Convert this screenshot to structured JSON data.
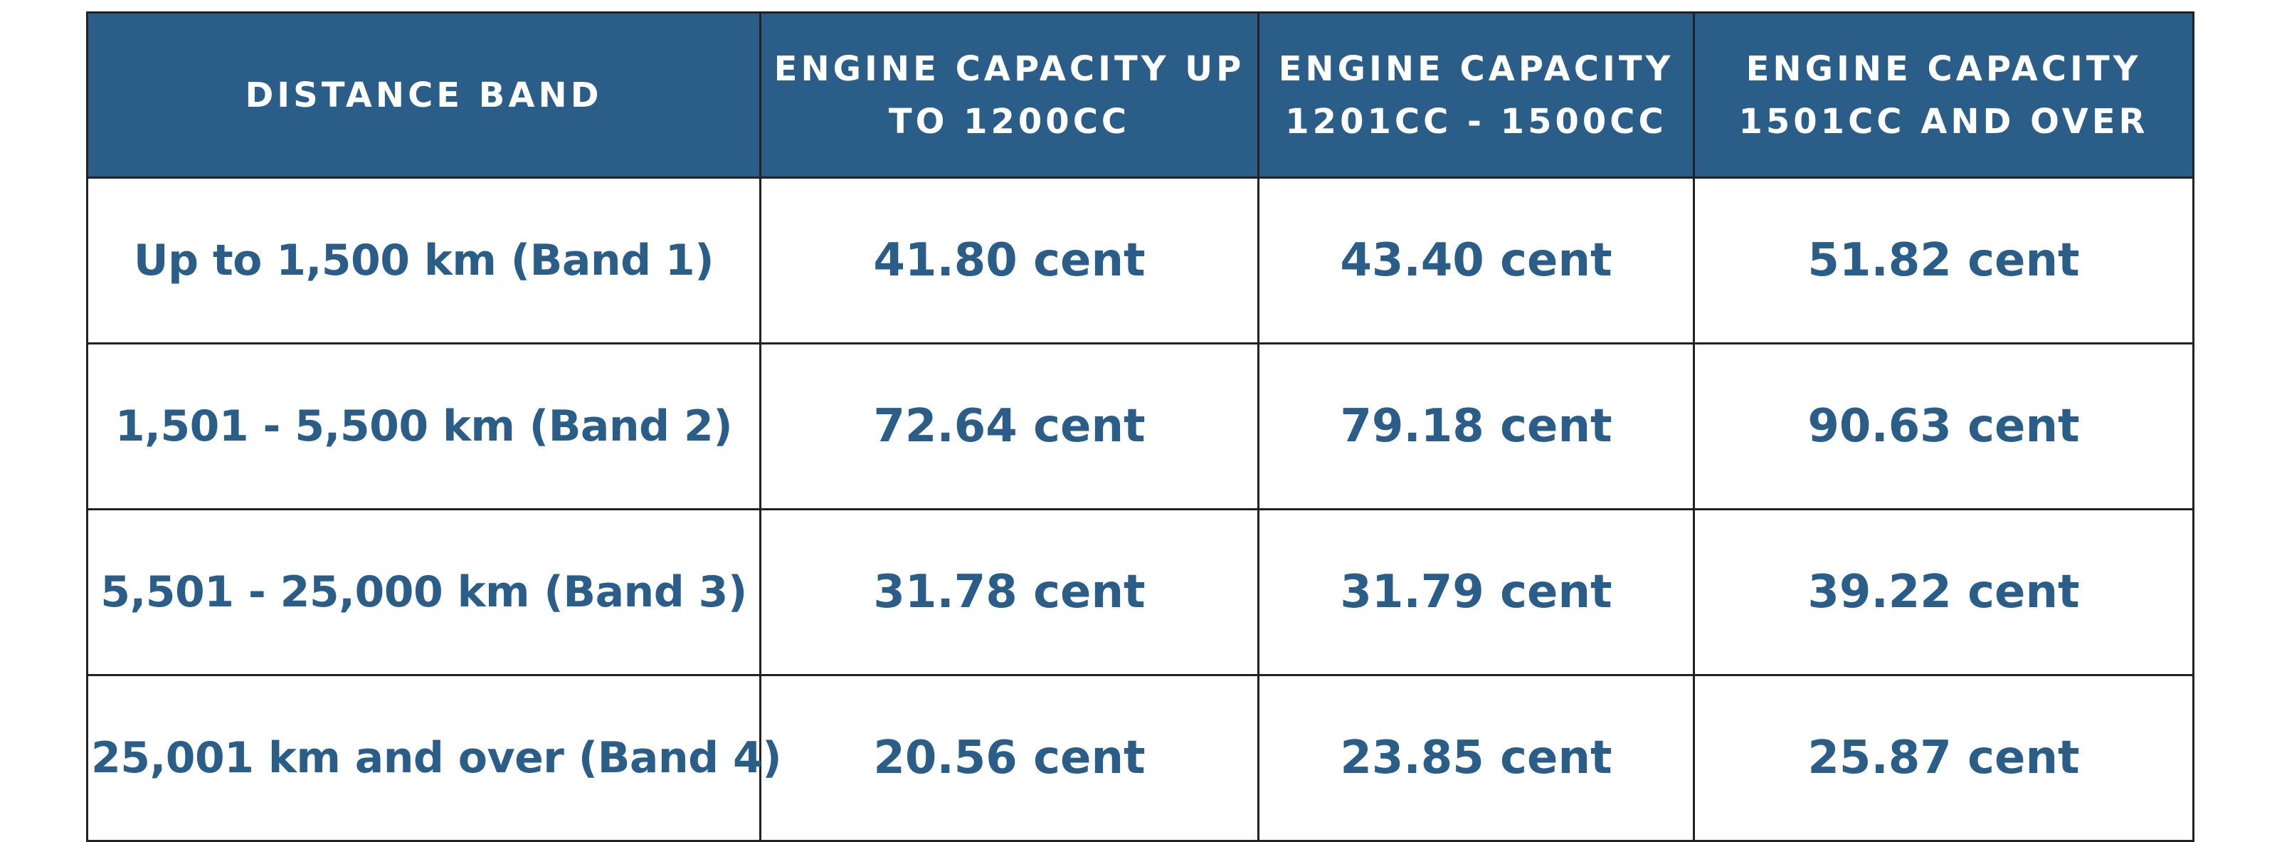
{
  "colors": {
    "header_background": "#2a5d87",
    "header_text": "#ffffff",
    "body_text": "#2a5d87",
    "border": "#222222"
  },
  "table": {
    "headers": [
      "DISTANCE BAND",
      "ENGINE CAPACITY UP TO 1200CC",
      "ENGINE CAPACITY 1201CC - 1500CC",
      "ENGINE CAPACITY 1501CC AND OVER"
    ],
    "rows": [
      {
        "band": "Up to 1,500 km (Band 1)",
        "rates": [
          "41.80 cent",
          "43.40 cent",
          "51.82 cent"
        ]
      },
      {
        "band": "1,501 - 5,500 km (Band 2)",
        "rates": [
          "72.64 cent",
          "79.18 cent",
          "90.63 cent"
        ]
      },
      {
        "band": "5,501 - 25,000 km (Band 3)",
        "rates": [
          "31.78 cent",
          "31.79 cent",
          "39.22 cent"
        ]
      },
      {
        "band": "25,001 km and over (Band 4)",
        "rates": [
          "20.56 cent",
          "23.85 cent",
          "25.87 cent"
        ]
      }
    ]
  }
}
